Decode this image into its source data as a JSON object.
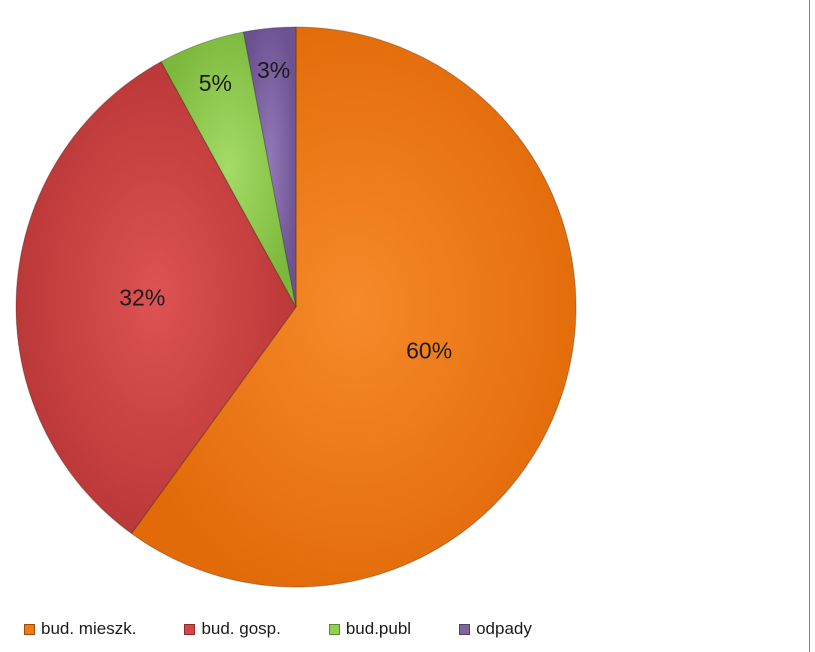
{
  "chart_data": {
    "type": "pie",
    "title": "",
    "categories": [
      "bud. mieszk.",
      "bud. gosp.",
      "bud.publ",
      "odpady"
    ],
    "values": [
      60,
      32,
      5,
      3
    ],
    "value_labels": [
      "60%",
      "32%",
      "5%",
      "3%"
    ],
    "colors": [
      "#f07a13",
      "#d84545",
      "#92d050",
      "#8064a2"
    ],
    "legend_position": "bottom-left",
    "start_angle": "12 o'clock",
    "direction": "clockwise"
  }
}
